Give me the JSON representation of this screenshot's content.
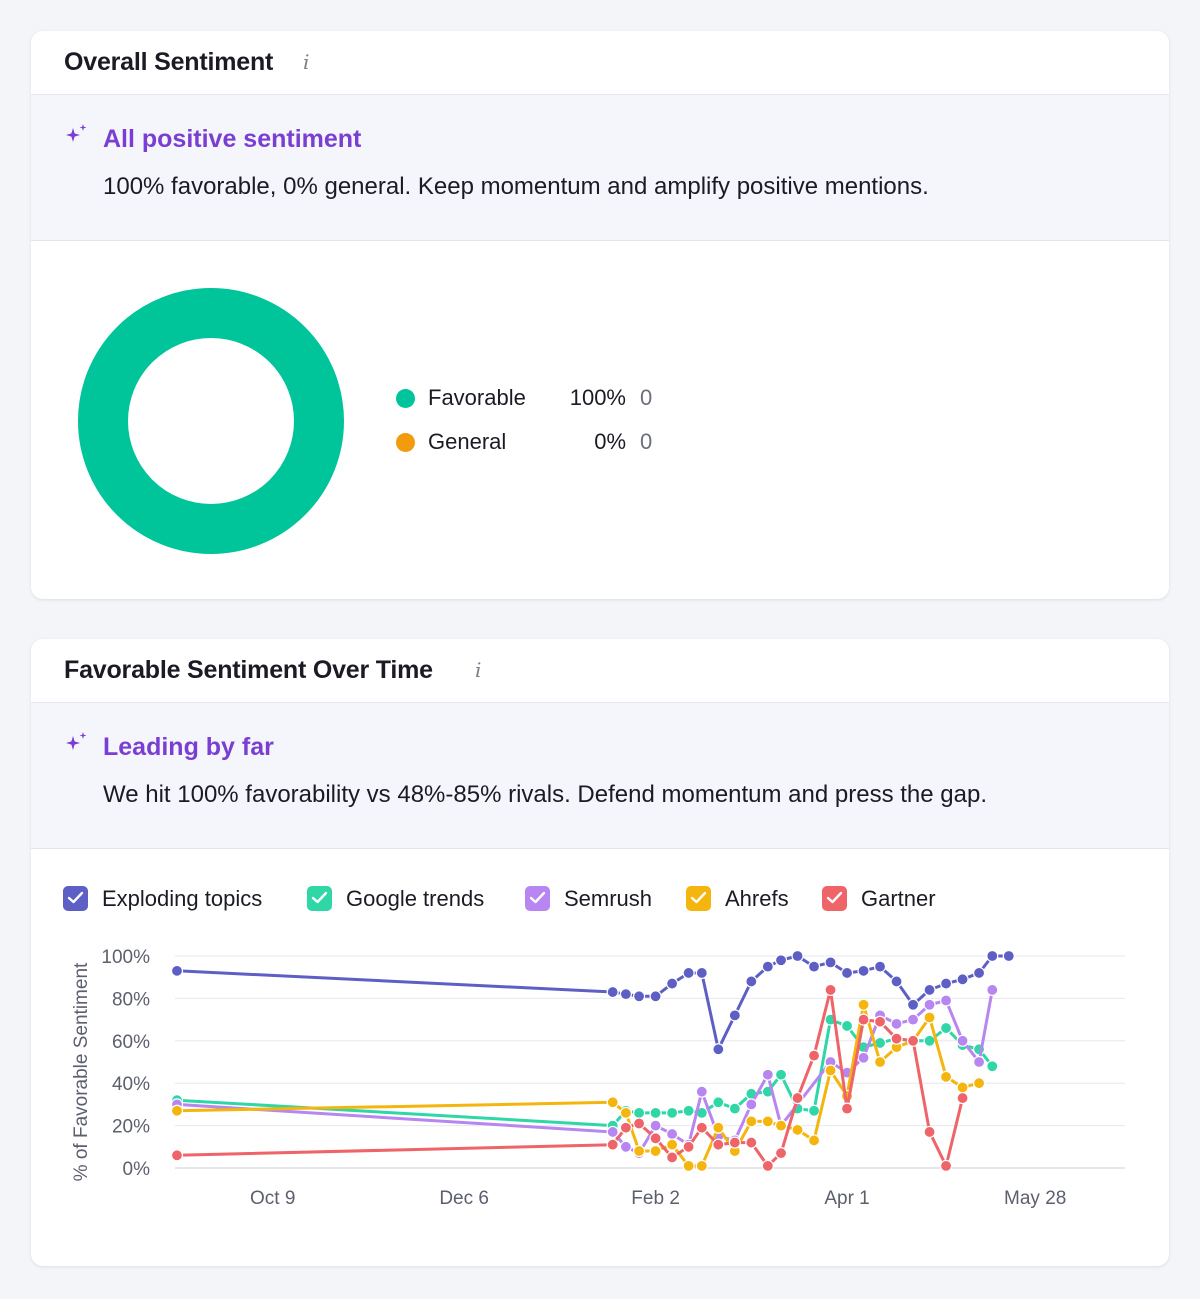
{
  "overall": {
    "title": "Overall Sentiment",
    "info_icon": "info-icon",
    "insight": {
      "icon": "sparkle-icon",
      "title": "All positive sentiment",
      "text": "100% favorable, 0% general. Keep momentum and amplify positive mentions."
    },
    "donut": {
      "segments": [
        {
          "name": "Favorable",
          "percent": "100%",
          "count": "0",
          "value": 100,
          "color": "#00c49a"
        },
        {
          "name": "General",
          "percent": "0%",
          "count": "0",
          "value": 0,
          "color": "#f29b0c"
        }
      ]
    }
  },
  "over_time": {
    "title": "Favorable Sentiment Over Time",
    "info_icon": "info-icon",
    "insight": {
      "icon": "sparkle-icon",
      "title": "Leading by far",
      "text": "We hit 100% favorability vs 48%-85% rivals. Defend momentum and press the gap."
    },
    "series_toggles": [
      {
        "label": "Exploding topics",
        "checked": true,
        "color": "#5d5fc4"
      },
      {
        "label": "Google trends",
        "checked": true,
        "color": "#2fd6a6"
      },
      {
        "label": "Semrush",
        "checked": true,
        "color": "#b786f0"
      },
      {
        "label": "Ahrefs",
        "checked": true,
        "color": "#f5b50f"
      },
      {
        "label": "Gartner",
        "checked": true,
        "color": "#ee6468"
      }
    ]
  },
  "chart_data": {
    "type": "line",
    "ylabel": "% of Favorable Sentiment",
    "xlabel": "",
    "ylim": [
      0,
      100
    ],
    "yticks": [
      "0%",
      "20%",
      "40%",
      "60%",
      "80%",
      "100%"
    ],
    "x_date_range": [
      "2024-09-10",
      "2025-06-23"
    ],
    "xticks": [
      {
        "label": "Oct 9",
        "date": "2024-10-09"
      },
      {
        "label": "Dec 6",
        "date": "2024-12-06"
      },
      {
        "label": "Feb 2",
        "date": "2025-02-02"
      },
      {
        "label": "Apr 1",
        "date": "2025-04-01"
      },
      {
        "label": "May 28",
        "date": "2025-05-28"
      }
    ],
    "dates": [
      "2024-09-10",
      "2025-01-20",
      "2025-01-24",
      "2025-01-28",
      "2025-02-02",
      "2025-02-07",
      "2025-02-12",
      "2025-02-16",
      "2025-02-21",
      "2025-02-26",
      "2025-03-03",
      "2025-03-08",
      "2025-03-12",
      "2025-03-17",
      "2025-03-22",
      "2025-03-27",
      "2025-04-01",
      "2025-04-06",
      "2025-04-11",
      "2025-04-16",
      "2025-04-21",
      "2025-04-26",
      "2025-05-01",
      "2025-05-06",
      "2025-05-11",
      "2025-05-15",
      "2025-05-20",
      "2025-05-25",
      "2025-05-30",
      "2025-06-04",
      "2025-06-09",
      "2025-06-14",
      "2025-06-19",
      "2025-06-23"
    ],
    "grid": true,
    "legend": "top",
    "series": [
      {
        "name": "Exploding topics",
        "color": "#5d5fc4",
        "values": [
          93,
          83,
          82,
          81,
          81,
          87,
          92,
          92,
          56,
          72,
          88,
          95,
          98,
          100,
          95,
          97,
          92,
          93,
          95,
          88,
          77,
          84,
          87,
          89,
          92,
          100,
          100,
          null,
          null,
          null,
          null,
          null,
          null,
          null
        ]
      },
      {
        "name": "Google trends",
        "color": "#2fd6a6",
        "values": [
          32,
          20,
          27,
          26,
          26,
          26,
          27,
          26,
          31,
          28,
          35,
          36,
          44,
          28,
          27,
          70,
          67,
          57,
          59,
          61,
          60,
          60,
          66,
          58,
          56,
          48,
          null,
          null,
          null,
          null,
          null,
          null,
          null,
          null
        ]
      },
      {
        "name": "Semrush",
        "color": "#b786f0",
        "values": [
          30,
          17,
          10,
          7,
          20,
          16,
          11,
          36,
          15,
          13,
          30,
          44,
          20,
          null,
          null,
          50,
          45,
          52,
          72,
          68,
          70,
          77,
          79,
          60,
          50,
          84,
          null,
          null,
          null,
          null,
          null,
          null,
          null,
          null
        ]
      },
      {
        "name": "Ahrefs",
        "color": "#f5b50f",
        "values": [
          27,
          31,
          26,
          8,
          8,
          11,
          1,
          1,
          19,
          8,
          22,
          22,
          20,
          18,
          13,
          46,
          34,
          77,
          50,
          57,
          60,
          71,
          43,
          38,
          40,
          null,
          null,
          null,
          null,
          null,
          null,
          null,
          null,
          null
        ]
      },
      {
        "name": "Gartner",
        "color": "#ee6468",
        "values": [
          6,
          11,
          19,
          21,
          14,
          5,
          10,
          19,
          11,
          12,
          12,
          1,
          7,
          33,
          53,
          84,
          28,
          70,
          69,
          61,
          60,
          17,
          1,
          33,
          null,
          null,
          null,
          null,
          null,
          null,
          null,
          null,
          null,
          null
        ]
      }
    ]
  }
}
